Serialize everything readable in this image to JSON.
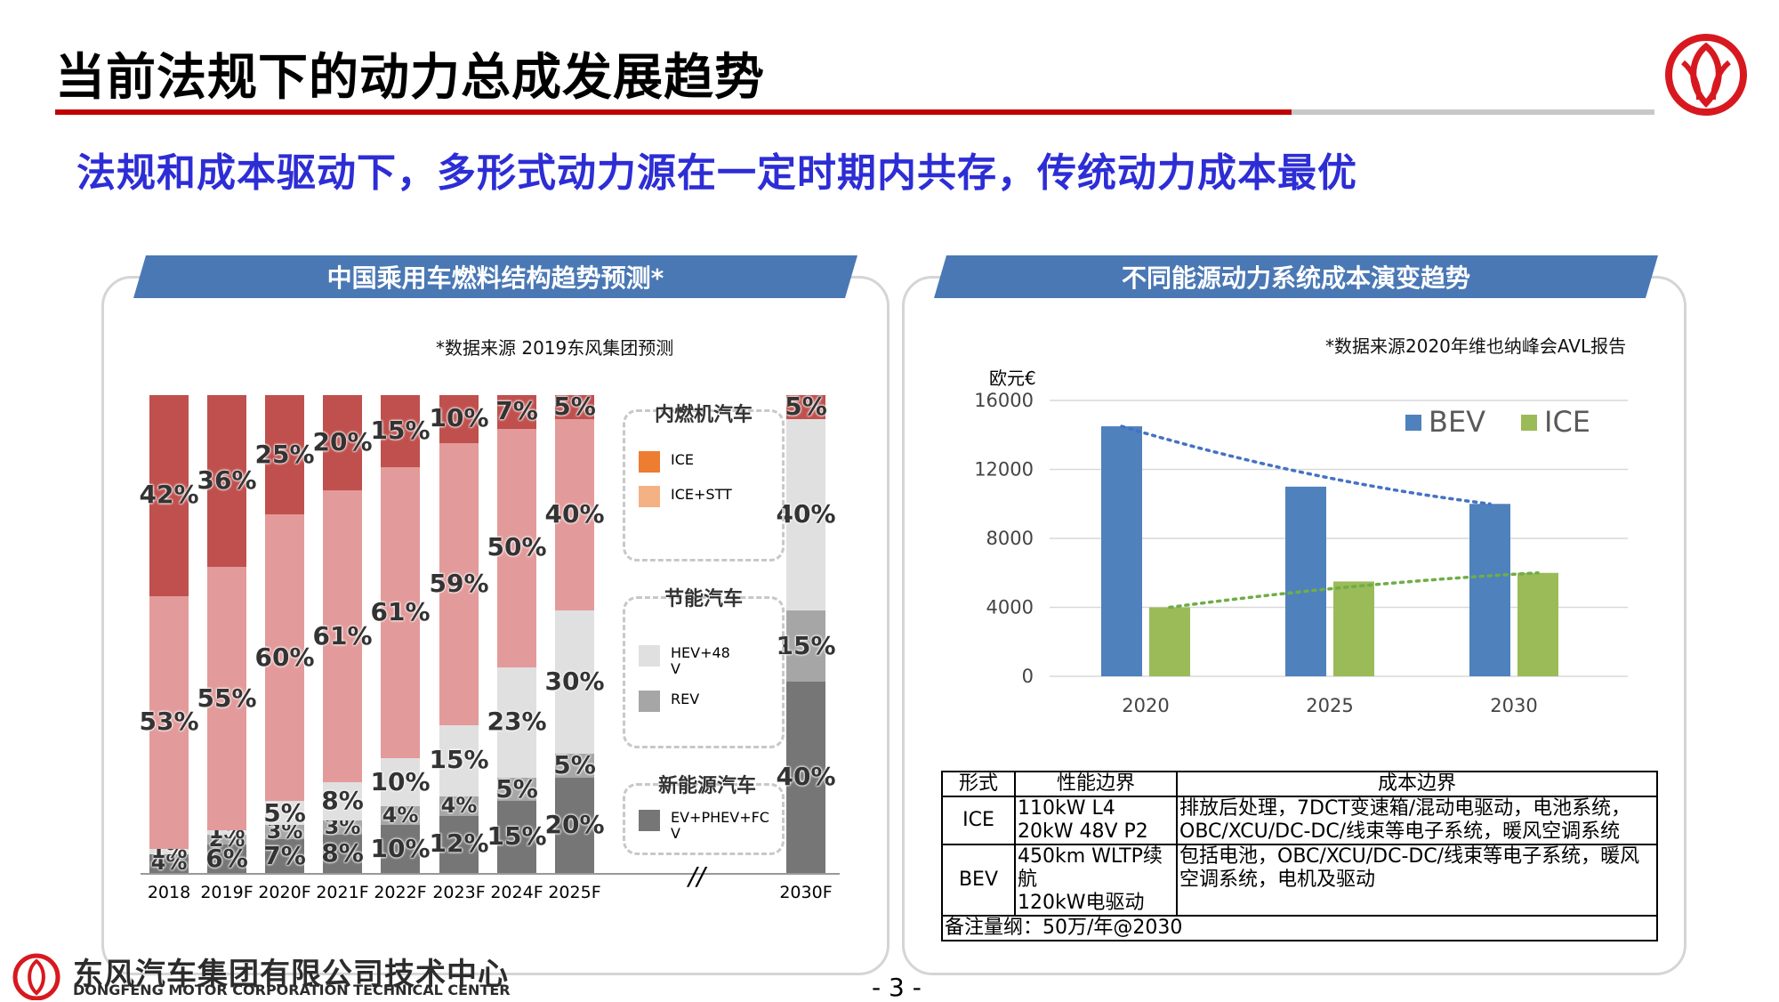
{
  "header": {
    "title": "当前法规下的动力总成发展趋势",
    "subtitle": "法规和成本驱动下，多形式动力源在一定时期内共存，传统动力成本最优"
  },
  "left_panel": {
    "banner": "中国乘用车燃料结构趋势预测*",
    "note": "*数据来源  2019东风集团预测",
    "break_mark": "//",
    "legend": {
      "groups": [
        {
          "title": "内燃机汽车",
          "items": [
            {
              "label": "ICE",
              "color": "#ed7d31"
            },
            {
              "label": "ICE+STT",
              "color": "#f4b183"
            }
          ]
        },
        {
          "title": "节能汽车",
          "items": [
            {
              "label": "HEV+48V",
              "color": "#e0e0e0"
            },
            {
              "label": "REV",
              "color": "#a6a6a6"
            }
          ]
        },
        {
          "title": "新能源汽车",
          "items": [
            {
              "label": "EV+PHEV+FCV",
              "color": "#767676"
            }
          ]
        }
      ]
    }
  },
  "right_panel": {
    "banner": "不同能源动力系统成本演变趋势",
    "note": "*数据来源2020年维也纳峰会AVL报告",
    "unit": "欧元€"
  },
  "cost_table": {
    "headers": [
      "形式",
      "性能边界",
      "成本边界"
    ],
    "rows": [
      {
        "type": "ICE",
        "performance": [
          "110kW L4",
          "20kW 48V P2"
        ],
        "cost": "排放后处理，7DCT变速箱/混动电驱动，电池系统，OBC/XCU/DC-DC/线束等电子系统，暖风空调系统"
      },
      {
        "type": "BEV",
        "performance": [
          "450km WLTP续航",
          "120kW电驱动"
        ],
        "cost": "包括电池，OBC/XCU/DC-DC/线束等电子系统，暖风空调系统，电机及驱动"
      }
    ],
    "footnote": "备注量纲：50万/年@2030"
  },
  "footer": {
    "company_cn": "东风汽车集团有限公司技术中心",
    "company_en": "DONGFENG MOTOR CORPORATION TECHNICAL CENTER",
    "page": "- 3 -"
  },
  "chart_data": [
    {
      "type": "bar",
      "stacked": true,
      "title": "中国乘用车燃料结构趋势预测*",
      "categories": [
        "2018",
        "2019F",
        "2020F",
        "2021F",
        "2022F",
        "2023F",
        "2024F",
        "2025F",
        "2030F"
      ],
      "series": [
        {
          "name": "EV+PHEV+FC",
          "color": "#767676",
          "values": [
            4,
            6,
            7,
            8,
            10,
            12,
            15,
            20,
            40
          ],
          "labels": [
            "4%",
            "6%",
            "7%",
            "8%",
            "10%",
            "12%",
            "15%",
            "20%",
            "40%"
          ]
        },
        {
          "name": "REV",
          "color": "#a6a6a6",
          "values": [
            0,
            2,
            3,
            3,
            4,
            4,
            5,
            5,
            15
          ],
          "labels": [
            "",
            "2%",
            "3%",
            "3%",
            "4%",
            "4%",
            "5%",
            "5%",
            "15%"
          ]
        },
        {
          "name": "HEV+48V",
          "color": "#e0e0e0",
          "values": [
            1,
            1,
            5,
            8,
            10,
            15,
            23,
            30,
            40
          ],
          "labels": [
            "1%",
            "1%",
            "5%",
            "8%",
            "10%",
            "15%",
            "23%",
            "30%",
            "40%"
          ]
        },
        {
          "name": "ICE+STT",
          "color": "#e39a9a",
          "values": [
            53,
            55,
            60,
            61,
            61,
            59,
            50,
            40,
            0
          ],
          "labels": [
            "53%",
            "55%",
            "60%",
            "61%",
            "61%",
            "59%",
            "50%",
            "40%",
            ""
          ]
        },
        {
          "name": "ICE",
          "color": "#c0504d",
          "values": [
            42,
            36,
            25,
            20,
            15,
            10,
            7,
            5,
            5
          ],
          "labels": [
            "42%",
            "36%",
            "25%",
            "20%",
            "15%",
            "10%",
            "7%",
            "5%",
            "5%"
          ]
        }
      ],
      "ylim": [
        0,
        100
      ]
    },
    {
      "type": "bar",
      "title": "不同能源动力系统成本演变趋势",
      "ylabel": "欧元€",
      "categories": [
        "2020",
        "2025",
        "2030"
      ],
      "series": [
        {
          "name": "BEV",
          "color": "#4f81bd",
          "values": [
            14500,
            11000,
            10000
          ]
        },
        {
          "name": "ICE",
          "color": "#9bbb59",
          "values": [
            4000,
            5500,
            6000
          ]
        }
      ],
      "trendlines": [
        "BEV",
        "ICE"
      ],
      "yticks": [
        0,
        4000,
        8000,
        12000,
        16000
      ],
      "ylim": [
        0,
        16000
      ],
      "legend": "top-right",
      "grid": true
    }
  ]
}
